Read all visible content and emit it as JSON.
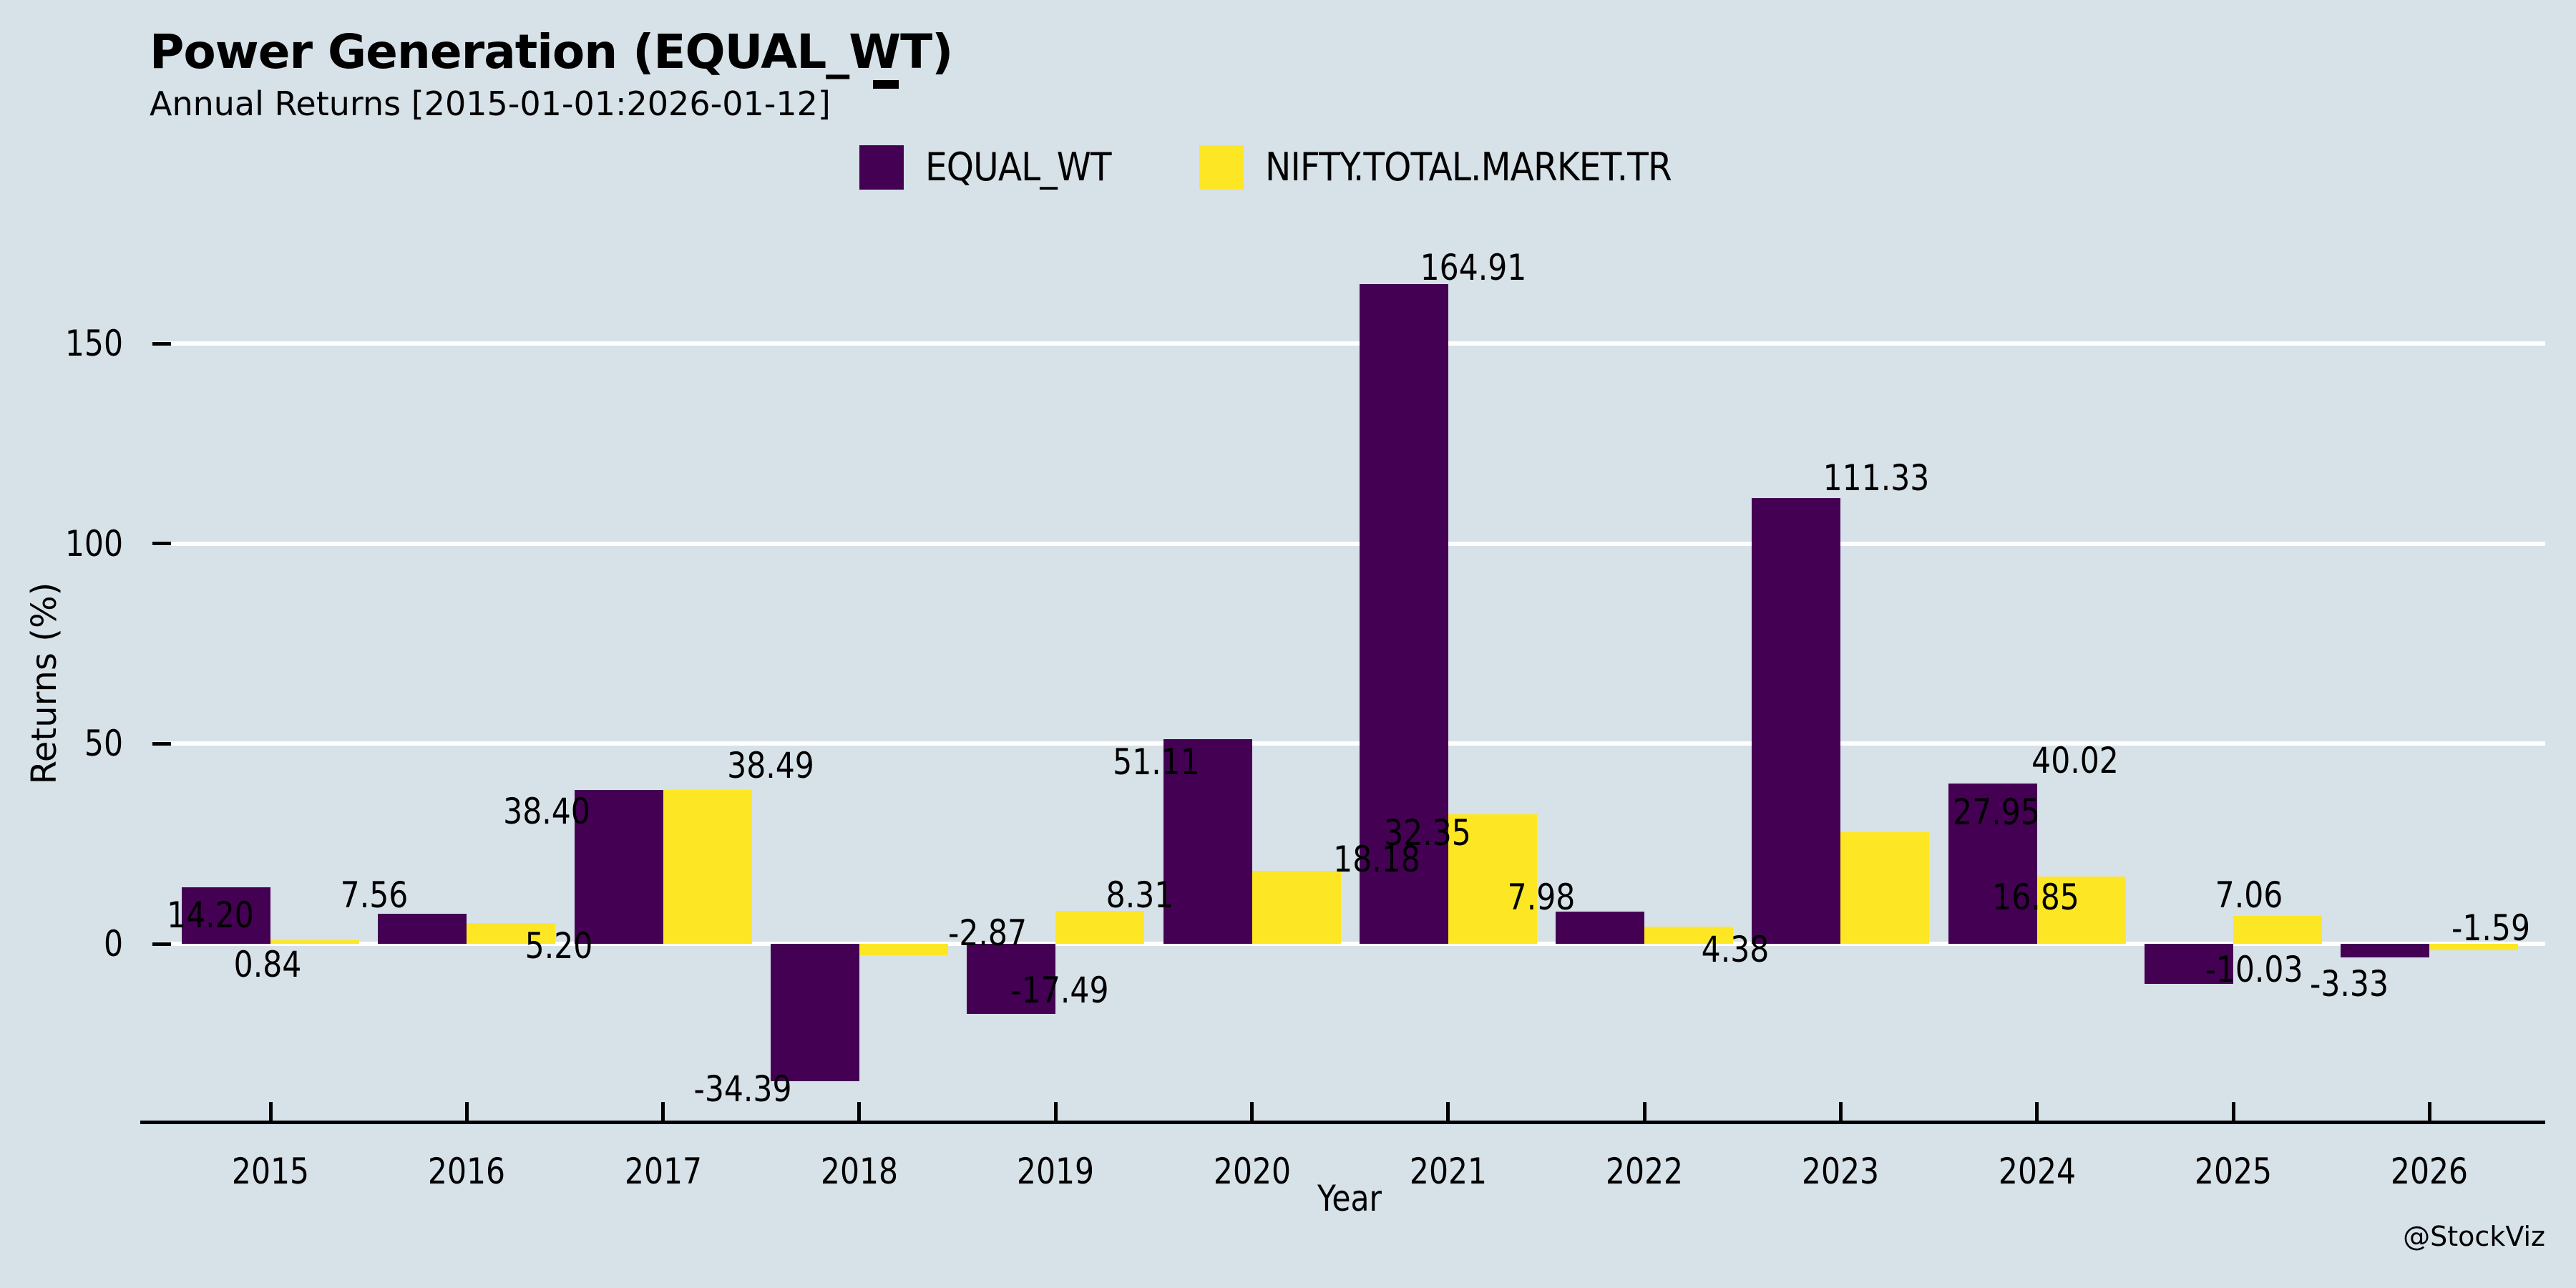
{
  "header": {
    "title": "Power Generation (EQUAL_WT)",
    "subtitle": "Annual Returns [2015-01-01:2026-01-12]"
  },
  "watermark": "@StockViz",
  "colors": {
    "background": "#d7e1e8",
    "series_equal_wt": "#440154",
    "series_benchmark": "#fde725",
    "gridline": "#ffffff",
    "axis": "#000000",
    "text": "#000000"
  },
  "legend": [
    {
      "label": "EQUAL_WT",
      "color": "#440154"
    },
    {
      "label": "NIFTY.TOTAL.MARKET.TR",
      "color": "#fde725"
    }
  ],
  "chart_data": {
    "type": "bar",
    "title": "Power Generation (EQUAL_WT)",
    "subtitle": "Annual Returns [2015-01-01:2026-01-12]",
    "xlabel": "Year",
    "ylabel": "Returns (%)",
    "categories": [
      "2015",
      "2016",
      "2017",
      "2018",
      "2019",
      "2020",
      "2021",
      "2022",
      "2023",
      "2024",
      "2025",
      "2026"
    ],
    "series": [
      {
        "name": "EQUAL_WT",
        "color": "#440154",
        "values": [
          14.2,
          7.56,
          38.4,
          -34.39,
          -17.49,
          51.11,
          164.91,
          7.98,
          111.33,
          40.02,
          -10.03,
          -3.33
        ],
        "label_offsets": [
          [
            -22,
            73
          ],
          [
            -67,
            8
          ],
          [
            -101,
            64
          ],
          [
            -101,
            -23
          ],
          [
            68,
            -67
          ],
          [
            -72,
            66
          ],
          [
            97,
            11
          ],
          [
            -82,
            14
          ],
          [
            112,
            6
          ],
          [
            115,
            2
          ],
          [
            91,
            -54
          ],
          [
            -50,
            3
          ]
        ]
      },
      {
        "name": "NIFTY.TOTAL.MARKET.TR",
        "color": "#fde725",
        "values": [
          0.84,
          5.2,
          38.49,
          -2.87,
          8.31,
          18.18,
          32.35,
          4.38,
          27.95,
          16.85,
          7.06,
          -1.59
        ],
        "label_offsets": [
          [
            -66,
            68
          ],
          [
            67,
            66
          ],
          [
            88,
            0
          ],
          [
            117,
            -65
          ],
          [
            56,
            12
          ],
          [
            112,
            18
          ],
          [
            -91,
            60
          ],
          [
            65,
            66
          ],
          [
            156,
            6
          ],
          [
            -64,
            63
          ],
          [
            -40,
            5
          ],
          [
            24,
            -65
          ]
        ]
      }
    ],
    "yticks": [
      0,
      50,
      100,
      150
    ],
    "ylim": [
      -45,
      185
    ],
    "grid": "horizontal white gridlines at yticks, drawn behind bars",
    "legend_position": "top-center",
    "value_labels": "each bar annotated with value to 2 decimals, black text"
  }
}
